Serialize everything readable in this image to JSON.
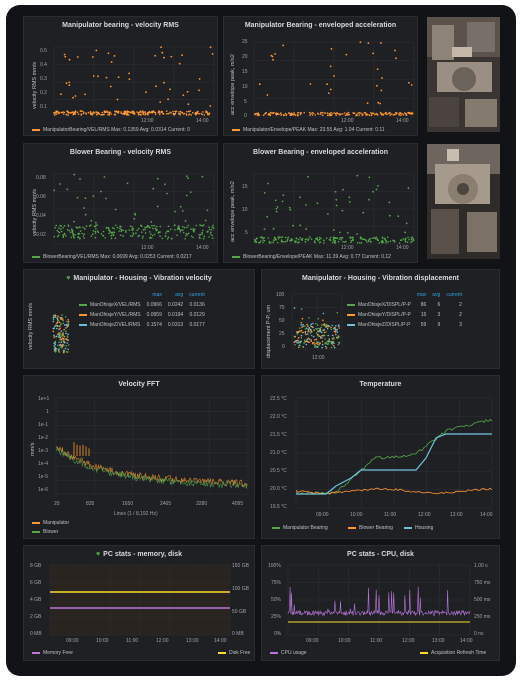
{
  "panels": {
    "manip_vel": {
      "title": "Manipulator bearing - velocity RMS",
      "ylabel": "velocity RMS mm/s",
      "yticks": [
        "0.5",
        "0.4",
        "0.3",
        "0.2",
        "0.1"
      ],
      "xticks": [
        "12:00",
        "14:00"
      ],
      "legend": "ManipulatorBearing/VEL/RMS  Max: 0.1359  Avg: 0.0314  Current: 0",
      "color": "#ff9830"
    },
    "manip_env": {
      "title": "Manipulator Bearing - enveloped acceleration",
      "ylabel": "acc envelope peak, m/s2",
      "yticks": [
        "25",
        "20",
        "15",
        "10",
        "5",
        "0"
      ],
      "xticks": [
        "12:00",
        "14:00"
      ],
      "legend": "Manipulator/Envelope/PEAK  Max: 23.55  Avg: 1.04  Current: 0.11",
      "color": "#ff9830"
    },
    "blower_vel": {
      "title": "Blower Bearing - velocity RMS",
      "ylabel": "velocity RMS mm/s",
      "yticks": [
        "0.08",
        "0.06",
        "0.04",
        "0.02"
      ],
      "xticks": [
        "12:00",
        "14:00"
      ],
      "legend": "BlowerBearing/VEL/RMS  Max: 0.0699  Avg: 0.0253  Current: 0.0217",
      "color": "#56a64b"
    },
    "blower_env": {
      "title": "Blower Bearing - enveloped acceleration",
      "ylabel": "acc envelope peak, m/s2",
      "yticks": [
        "15",
        "10",
        "5"
      ],
      "xticks": [
        "12:00",
        "14:00"
      ],
      "legend": "BlowerBearing/Envelope/PEAK  Max: 11.39  Avg: 0.77  Current: 0.12",
      "color": "#56a64b"
    },
    "housing_vel": {
      "title": "Manipulator - Housing - Vibration velocity",
      "ylabel": "velocity RMS mm/s",
      "headers": [
        "max",
        "avg",
        "current"
      ],
      "rows": [
        {
          "name": "ManOhisjeX/VEL/RMS",
          "max": "0.0966",
          "avg": "0.0242",
          "current": "0.0136",
          "color": "#56a64b"
        },
        {
          "name": "ManOhisjeY/VEL/RMS",
          "max": "0.0959",
          "avg": "0.0194",
          "current": "0.0129",
          "color": "#ff9830"
        },
        {
          "name": "ManOhisjeZ/VEL/RMS",
          "max": "0.1574",
          "avg": "0.0313",
          "current": "0.0177",
          "color": "#73bfd9"
        }
      ]
    },
    "housing_disp": {
      "title": "Manipulator - Housing - Vibration displacement",
      "ylabel": "displacement P-P, um",
      "yticks": [
        "100",
        "75",
        "50",
        "25",
        "0"
      ],
      "xticks": [
        "12:00"
      ],
      "headers": [
        "max",
        "avg",
        "current"
      ],
      "rows": [
        {
          "name": "ManOhisjeX/DISPL/P-P",
          "max": "86",
          "avg": "6",
          "current": "2",
          "color": "#56a64b"
        },
        {
          "name": "ManOhisjeY/DISPL/P-P",
          "max": "15",
          "avg": "3",
          "current": "2",
          "color": "#ff9830"
        },
        {
          "name": "ManOhisjeZ/DISPL/P-P",
          "max": "59",
          "avg": "9",
          "current": "3",
          "color": "#73bfd9"
        }
      ]
    },
    "fft": {
      "title": "Velocity FFT",
      "ylabel": "mm/s",
      "yticks": [
        "1e+1",
        "1",
        "1e-1",
        "1e-2",
        "1e-3",
        "1e-4",
        "1e-5",
        "1e-6"
      ],
      "xticks": [
        "20",
        "835",
        "1650",
        "2465",
        "3280",
        "4095"
      ],
      "xlabel": "Lines (1 / 8,192 Hz)",
      "legend": [
        {
          "name": "Manipulator",
          "color": "#ff9830"
        },
        {
          "name": "Blower",
          "color": "#56a64b"
        }
      ]
    },
    "temp": {
      "title": "Temperature",
      "yticks": [
        "22.5 °C",
        "22.0 °C",
        "21.5 °C",
        "21.0 °C",
        "20.5 °C",
        "20.0 °C",
        "19.5 °C"
      ],
      "xticks": [
        "09:00",
        "10:00",
        "11:00",
        "12:00",
        "13:00",
        "14:00"
      ],
      "legend": [
        {
          "name": "Manipulator Bearing",
          "color": "#56a64b"
        },
        {
          "name": "Blower Bearing",
          "color": "#ff9830"
        },
        {
          "name": "Housing",
          "color": "#73bfd9"
        }
      ]
    },
    "pc_mem": {
      "title": "PC stats - memory, disk",
      "yticks_left": [
        "8 GB",
        "6 GB",
        "4 GB",
        "2 GB",
        "0 MB"
      ],
      "yticks_right": [
        "150 GB",
        "100 GB",
        "50 GB",
        "0 MB"
      ],
      "xticks": [
        "09:00",
        "10:00",
        "11:00",
        "12:00",
        "13:00",
        "14:00"
      ],
      "legend_left": {
        "name": "Memory Free",
        "color": "#b877d9"
      },
      "legend_right": {
        "name": "Disk Free",
        "color": "#fade2a"
      }
    },
    "pc_cpu": {
      "title": "PC stats - CPU, disk",
      "yticks_left": [
        "100%",
        "75%",
        "50%",
        "25%",
        "0%"
      ],
      "yticks_right": [
        "1.00 s",
        "750 ms",
        "500 ms",
        "250 ms",
        "0 ns"
      ],
      "xticks": [
        "09:00",
        "10:00",
        "11:00",
        "12:00",
        "13:00",
        "14:00"
      ],
      "legend_left": {
        "name": "CPU usage",
        "color": "#b877d9"
      },
      "legend_right": {
        "name": "Acquisition Refresh Time",
        "color": "#fade2a"
      }
    }
  },
  "photos": [
    "machine-photo-top",
    "machine-photo-bottom"
  ]
}
